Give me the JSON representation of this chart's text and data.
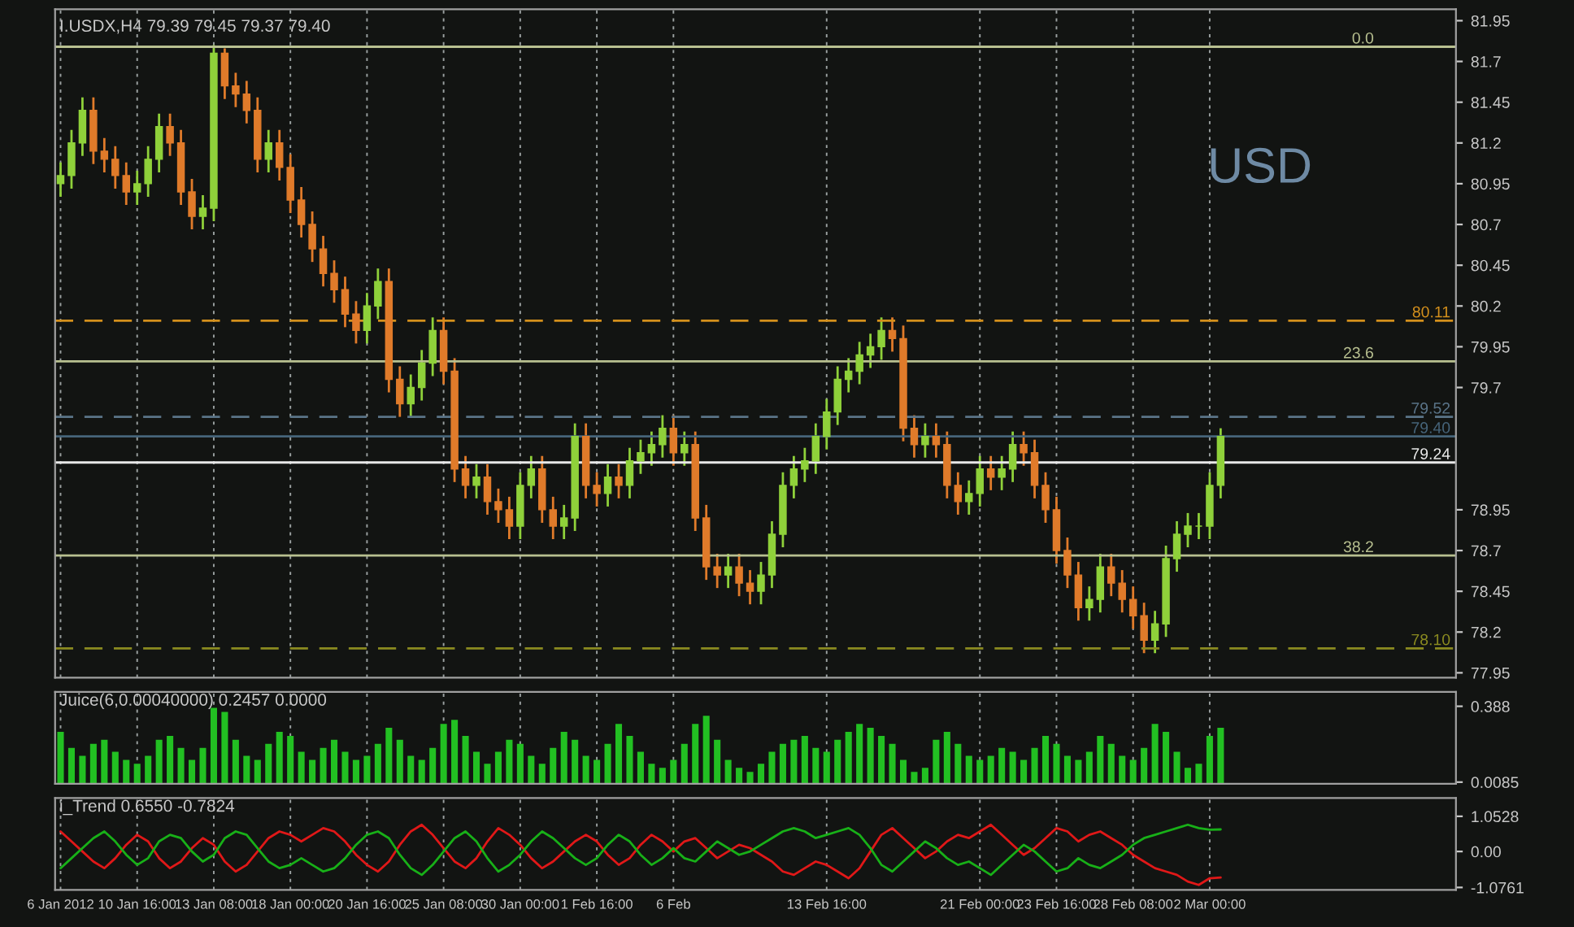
{
  "chart_data": [
    {
      "type": "candlestick",
      "title": "I.USDX,H4 79.39 79.45 79.37 79.40",
      "colors": [
        "#8fd13a",
        "#8fd13a",
        "#8fd13a",
        "#e07b2a",
        "#e07b2a",
        "#e07b2a",
        "#e07b2a",
        "#8fd13a",
        "#8fd13a",
        "#8fd13a",
        "#e07b2a",
        "#e07b2a",
        "#e07b2a",
        "#8fd13a",
        "#8fd13a",
        "#e07b2a",
        "#e07b2a",
        "#e07b2a",
        "#e07b2a",
        "#8fd13a",
        "#e07b2a",
        "#e07b2a",
        "#e07b2a",
        "#e07b2a",
        "#e07b2a",
        "#e07b2a",
        "#e07b2a",
        "#e07b2a",
        "#8fd13a",
        "#8fd13a",
        "#e07b2a",
        "#e07b2a",
        "#8fd13a",
        "#8fd13a",
        "#8fd13a",
        "#e07b2a",
        "#e07b2a",
        "#e07b2a",
        "#8fd13a",
        "#e07b2a",
        "#e07b2a",
        "#e07b2a",
        "#8fd13a",
        "#8fd13a",
        "#e07b2a",
        "#e07b2a",
        "#8fd13a",
        "#8fd13a",
        "#e07b2a",
        "#e07b2a",
        "#8fd13a",
        "#e07b2a",
        "#8fd13a",
        "#8fd13a",
        "#8fd13a",
        "#8fd13a",
        "#e07b2a",
        "#8fd13a",
        "#e07b2a",
        "#e07b2a",
        "#e07b2a",
        "#8fd13a",
        "#e07b2a",
        "#e07b2a",
        "#8fd13a",
        "#8fd13a",
        "#8fd13a",
        "#8fd13a",
        "#8fd13a",
        "#8fd13a",
        "#8fd13a",
        "#8fd13a",
        "#8fd13a",
        "#8fd13a",
        "#8fd13a",
        "#8fd13a",
        "#e07b2a",
        "#e07b2a",
        "#e07b2a",
        "#8fd13a",
        "#e07b2a",
        "#e07b2a",
        "#e07b2a",
        "#8fd13a",
        "#8fd13a",
        "#e07b2a",
        "#8fd13a",
        "#8fd13a",
        "#e07b2a",
        "#e07b2a",
        "#e07b2a",
        "#e07b2a",
        "#e07b2a",
        "#e07b2a",
        "#8fd13a",
        "#8fd13a",
        "#e07b2a",
        "#e07b2a",
        "#e07b2a",
        "#e07b2a",
        "#8fd13a",
        "#8fd13a",
        "#8fd13a",
        "#8fd13a",
        "#8fd13a",
        "#8fd13a",
        "#8fd13a",
        null,
        null,
        null,
        null,
        null,
        null,
        null,
        null,
        null,
        null,
        null,
        null,
        null,
        null,
        null,
        null,
        null,
        null,
        null,
        null,
        null
      ],
      "categories": [
        null,
        null,
        null,
        null,
        null,
        null,
        null,
        null,
        null,
        null,
        null,
        null,
        null,
        null,
        null,
        null,
        null,
        null,
        null,
        null,
        null,
        null,
        null,
        null,
        null,
        null,
        null,
        null,
        null,
        null,
        null,
        null,
        null,
        null,
        null,
        null,
        null,
        null,
        null,
        null,
        null,
        null,
        null,
        null,
        null,
        null,
        null,
        null,
        null,
        null,
        null,
        null,
        null,
        null,
        null,
        null,
        null,
        null,
        null,
        null,
        null,
        null,
        null,
        null,
        null,
        null,
        null,
        null,
        null,
        null,
        null,
        null,
        null,
        null,
        null,
        null,
        null,
        null,
        null,
        null,
        null,
        null,
        null,
        null,
        null,
        null,
        null,
        null,
        null,
        null,
        null,
        null,
        null,
        null,
        null,
        null,
        null,
        null,
        null,
        null,
        null,
        null,
        null,
        null,
        null,
        null,
        null,
        null,
        null,
        null,
        null,
        null,
        null,
        null,
        null,
        null,
        null,
        null,
        null,
        null,
        null,
        null,
        null,
        null,
        null,
        null,
        null,
        null
      ],
      "ohlc": [
        [
          80.95,
          81.08,
          80.87,
          81.0
        ],
        [
          81.0,
          81.28,
          80.92,
          81.2
        ],
        [
          81.2,
          81.48,
          81.12,
          81.4
        ],
        [
          81.4,
          81.48,
          81.07,
          81.15
        ],
        [
          81.15,
          81.23,
          81.02,
          81.1
        ],
        [
          81.1,
          81.18,
          80.92,
          81.0
        ],
        [
          81.0,
          81.08,
          80.82,
          80.9
        ],
        [
          80.9,
          81.03,
          80.82,
          80.95
        ],
        [
          80.95,
          81.18,
          80.87,
          81.1
        ],
        [
          81.1,
          81.38,
          81.02,
          81.3
        ],
        [
          81.3,
          81.38,
          81.12,
          81.2
        ],
        [
          81.2,
          81.28,
          80.82,
          80.9
        ],
        [
          80.9,
          80.98,
          80.67,
          80.75
        ],
        [
          80.75,
          80.88,
          80.67,
          80.8
        ],
        [
          80.8,
          81.8,
          80.72,
          81.75
        ],
        [
          81.75,
          81.78,
          81.47,
          81.55
        ],
        [
          81.55,
          81.63,
          81.42,
          81.5
        ],
        [
          81.5,
          81.58,
          81.32,
          81.4
        ],
        [
          81.4,
          81.48,
          81.02,
          81.1
        ],
        [
          81.1,
          81.28,
          81.02,
          81.2
        ],
        [
          81.2,
          81.28,
          80.97,
          81.05
        ],
        [
          81.05,
          81.13,
          80.77,
          80.85
        ],
        [
          80.85,
          80.93,
          80.62,
          80.7
        ],
        [
          80.7,
          80.78,
          80.47,
          80.55
        ],
        [
          80.55,
          80.63,
          80.32,
          80.4
        ],
        [
          80.4,
          80.48,
          80.22,
          80.3
        ],
        [
          80.3,
          80.38,
          80.07,
          80.15
        ],
        [
          80.15,
          80.23,
          79.97,
          80.05
        ],
        [
          80.05,
          80.28,
          79.97,
          80.2
        ],
        [
          80.2,
          80.43,
          80.12,
          80.35
        ],
        [
          80.35,
          80.43,
          79.67,
          79.75
        ],
        [
          79.75,
          79.83,
          79.52,
          79.6
        ],
        [
          79.6,
          79.78,
          79.52,
          79.7
        ],
        [
          79.7,
          79.93,
          79.62,
          79.85
        ],
        [
          79.85,
          80.13,
          79.77,
          80.05
        ],
        [
          80.05,
          80.13,
          79.72,
          79.8
        ],
        [
          79.8,
          79.88,
          79.12,
          79.2
        ],
        [
          79.2,
          79.28,
          79.02,
          79.1
        ],
        [
          79.1,
          79.23,
          79.02,
          79.15
        ],
        [
          79.15,
          79.23,
          78.92,
          79.0
        ],
        [
          79.0,
          79.08,
          78.87,
          78.95
        ],
        [
          78.95,
          79.03,
          78.77,
          78.85
        ],
        [
          78.85,
          79.18,
          78.77,
          79.1
        ],
        [
          79.1,
          79.28,
          79.02,
          79.2
        ],
        [
          79.2,
          79.28,
          78.87,
          78.95
        ],
        [
          78.95,
          79.03,
          78.77,
          78.85
        ],
        [
          78.85,
          78.98,
          78.77,
          78.9
        ],
        [
          78.9,
          79.48,
          78.82,
          79.4
        ],
        [
          79.4,
          79.48,
          79.02,
          79.1
        ],
        [
          79.1,
          79.18,
          78.97,
          79.05
        ],
        [
          79.05,
          79.23,
          78.97,
          79.15
        ],
        [
          79.15,
          79.23,
          79.02,
          79.1
        ],
        [
          79.1,
          79.33,
          79.02,
          79.25
        ],
        [
          79.25,
          79.38,
          79.17,
          79.3
        ],
        [
          79.3,
          79.43,
          79.22,
          79.35
        ],
        [
          79.35,
          79.53,
          79.27,
          79.45
        ],
        [
          79.45,
          79.53,
          79.22,
          79.3
        ],
        [
          79.3,
          79.43,
          79.22,
          79.35
        ],
        [
          79.35,
          79.43,
          78.82,
          78.9
        ],
        [
          78.9,
          78.98,
          78.52,
          78.6
        ],
        [
          78.6,
          78.68,
          78.47,
          78.55
        ],
        [
          78.55,
          78.68,
          78.47,
          78.6
        ],
        [
          78.6,
          78.68,
          78.42,
          78.5
        ],
        [
          78.5,
          78.58,
          78.37,
          78.45
        ],
        [
          78.45,
          78.63,
          78.37,
          78.55
        ],
        [
          78.55,
          78.88,
          78.47,
          78.8
        ],
        [
          78.8,
          79.18,
          78.72,
          79.1
        ],
        [
          79.1,
          79.28,
          79.02,
          79.2
        ],
        [
          79.2,
          79.33,
          79.12,
          79.25
        ],
        [
          79.25,
          79.48,
          79.17,
          79.4
        ],
        [
          79.4,
          79.63,
          79.32,
          79.55
        ],
        [
          79.55,
          79.83,
          79.47,
          79.75
        ],
        [
          79.75,
          79.88,
          79.67,
          79.8
        ],
        [
          79.8,
          79.98,
          79.72,
          79.9
        ],
        [
          79.9,
          80.03,
          79.82,
          79.95
        ],
        [
          79.95,
          80.13,
          79.87,
          80.05
        ],
        [
          80.05,
          80.13,
          79.92,
          80.0
        ],
        [
          80.0,
          80.08,
          79.37,
          79.45
        ],
        [
          79.45,
          79.53,
          79.27,
          79.35
        ],
        [
          79.35,
          79.48,
          79.27,
          79.4
        ],
        [
          79.4,
          79.48,
          79.27,
          79.35
        ],
        [
          79.35,
          79.43,
          79.02,
          79.1
        ],
        [
          79.1,
          79.18,
          78.92,
          79.0
        ],
        [
          79.0,
          79.13,
          78.92,
          79.05
        ],
        [
          79.05,
          79.28,
          78.97,
          79.2
        ],
        [
          79.2,
          79.28,
          79.07,
          79.15
        ],
        [
          79.15,
          79.28,
          79.07,
          79.2
        ],
        [
          79.2,
          79.43,
          79.12,
          79.35
        ],
        [
          79.35,
          79.43,
          79.22,
          79.3
        ],
        [
          79.3,
          79.38,
          79.02,
          79.1
        ],
        [
          79.1,
          79.18,
          78.87,
          78.95
        ],
        [
          78.95,
          79.03,
          78.62,
          78.7
        ],
        [
          78.7,
          78.78,
          78.47,
          78.55
        ],
        [
          78.55,
          78.63,
          78.27,
          78.35
        ],
        [
          78.35,
          78.48,
          78.27,
          78.4
        ],
        [
          78.4,
          78.68,
          78.32,
          78.6
        ],
        [
          78.6,
          78.68,
          78.42,
          78.5
        ],
        [
          78.5,
          78.58,
          78.32,
          78.4
        ],
        [
          78.4,
          78.48,
          78.22,
          78.3
        ],
        [
          78.3,
          78.38,
          78.07,
          78.15
        ],
        [
          78.15,
          78.33,
          78.07,
          78.25
        ],
        [
          78.25,
          78.73,
          78.17,
          78.65
        ],
        [
          78.65,
          78.88,
          78.57,
          78.8
        ],
        [
          78.8,
          78.93,
          78.72,
          78.85
        ],
        [
          78.85,
          78.93,
          78.77,
          78.85
        ],
        [
          78.85,
          79.18,
          78.77,
          79.1
        ],
        [
          79.1,
          79.45,
          79.02,
          79.4
        ],
        null,
        null,
        null,
        null,
        null,
        null,
        null,
        null,
        null,
        null,
        null,
        null,
        null,
        null,
        null,
        null,
        null,
        null,
        null,
        null,
        null
      ],
      "ylim": [
        77.92,
        82.02
      ],
      "yticks": [
        81.95,
        81.7,
        81.45,
        81.2,
        80.95,
        80.7,
        80.45,
        80.2,
        79.95,
        79.7,
        78.95,
        78.7,
        78.45,
        78.2,
        77.95
      ],
      "ref_lines": [
        {
          "axis": "y",
          "value": 81.79,
          "color": "#b8c090",
          "line_style": "solid"
        },
        {
          "axis": "y",
          "value": 80.11,
          "label": "80.11",
          "color": "#d4901c",
          "line_style": "dashed"
        },
        {
          "axis": "y",
          "value": 79.86,
          "color": "#b8c090",
          "line_style": "solid"
        },
        {
          "axis": "y",
          "value": 79.52,
          "label": "79.52",
          "color": "#5a7488",
          "line_style": "dashed"
        },
        {
          "axis": "y",
          "value": 79.4,
          "label": "79.40",
          "color": "#46647a",
          "line_style": "solid"
        },
        {
          "axis": "y",
          "value": 79.24,
          "label": "79.24",
          "color": "#e8e8e8",
          "line_style": "solid"
        },
        {
          "axis": "y",
          "value": 78.67,
          "color": "#b8c090",
          "line_style": "solid"
        },
        {
          "axis": "y",
          "value": 78.1,
          "label": "78.10",
          "color": "#8a8a20",
          "line_style": "dashed"
        }
      ],
      "annotations": [
        "USD",
        {
          "text": "0.0",
          "y": 81.79
        },
        {
          "text": "23.6",
          "y": 79.86
        },
        {
          "text": "38.2",
          "y": 78.67
        }
      ],
      "grid": "x",
      "tick_labels": "y"
    },
    {
      "type": "bar",
      "title": "Juice(6,0.00040000) 0.2457 0.0000",
      "color": "#22c022",
      "categories": [
        null,
        null,
        null,
        null,
        null,
        null,
        null,
        null,
        null,
        null,
        null,
        null,
        null,
        null,
        null,
        null,
        null,
        null,
        null,
        null,
        null,
        null,
        null,
        null,
        null,
        null,
        null,
        null,
        null,
        null,
        null,
        null,
        null,
        null,
        null,
        null,
        null,
        null,
        null,
        null,
        null,
        null,
        null,
        null,
        null,
        null,
        null,
        null,
        null,
        null,
        null,
        null,
        null,
        null,
        null,
        null,
        null,
        null,
        null,
        null,
        null,
        null,
        null,
        null,
        null,
        null,
        null,
        null,
        null,
        null,
        null,
        null,
        null,
        null,
        null,
        null,
        null,
        null,
        null,
        null,
        null,
        null,
        null,
        null,
        null,
        null,
        null,
        null,
        null,
        null,
        null,
        null,
        null,
        null,
        null,
        null,
        null,
        null,
        null,
        null,
        null,
        null,
        null,
        null,
        null,
        null,
        null,
        null,
        null,
        null,
        null,
        null,
        null,
        null,
        null,
        null,
        null,
        null,
        null,
        null,
        null,
        null,
        null,
        null,
        null,
        null,
        null,
        null
      ],
      "values": [
        0.26,
        0.18,
        0.14,
        0.2,
        0.22,
        0.16,
        0.12,
        0.1,
        0.14,
        0.22,
        0.24,
        0.18,
        0.12,
        0.18,
        0.38,
        0.36,
        0.22,
        0.14,
        0.12,
        0.2,
        0.26,
        0.24,
        0.16,
        0.12,
        0.18,
        0.22,
        0.16,
        0.12,
        0.14,
        0.2,
        0.28,
        0.22,
        0.14,
        0.12,
        0.18,
        0.3,
        0.32,
        0.24,
        0.16,
        0.1,
        0.16,
        0.22,
        0.2,
        0.14,
        0.1,
        0.18,
        0.26,
        0.22,
        0.14,
        0.12,
        0.2,
        0.3,
        0.24,
        0.16,
        0.1,
        0.08,
        0.12,
        0.2,
        0.3,
        0.34,
        0.22,
        0.12,
        0.08,
        0.06,
        0.1,
        0.16,
        0.2,
        0.22,
        0.24,
        0.18,
        0.16,
        0.22,
        0.26,
        0.3,
        0.28,
        0.24,
        0.2,
        0.12,
        0.06,
        0.08,
        0.22,
        0.26,
        0.2,
        0.14,
        0.12,
        0.14,
        0.18,
        0.16,
        0.12,
        0.18,
        0.24,
        0.2,
        0.14,
        0.12,
        0.16,
        0.24,
        0.2,
        0.14,
        0.12,
        0.18,
        0.3,
        0.26,
        0.16,
        0.08,
        0.1,
        0.24,
        0.28,
        null,
        null,
        null,
        null,
        null,
        null,
        null,
        null,
        null,
        null,
        null,
        null,
        null,
        null,
        null,
        null,
        null,
        null,
        null,
        null,
        null
      ],
      "ylim": [
        0,
        0.46
      ],
      "yticks": [
        0.388,
        0.0085
      ],
      "grid": "x",
      "tick_labels": "y"
    },
    {
      "type": "line",
      "title": "i_Trend 0.6550 -0.7824",
      "categories": [
        "6 Jan 2012",
        null,
        null,
        null,
        null,
        null,
        null,
        "10 Jan 16:00",
        null,
        null,
        null,
        null,
        null,
        null,
        "13 Jan 08:00",
        null,
        null,
        null,
        null,
        null,
        null,
        "18 Jan 00:00",
        null,
        null,
        null,
        null,
        null,
        null,
        "20 Jan 16:00",
        null,
        null,
        null,
        null,
        null,
        null,
        "25 Jan 08:00",
        null,
        null,
        null,
        null,
        null,
        null,
        "30 Jan 00:00",
        null,
        null,
        null,
        null,
        null,
        null,
        "1 Feb 16:00",
        null,
        null,
        null,
        null,
        null,
        null,
        "6 Feb",
        null,
        null,
        null,
        null,
        null,
        null,
        null,
        null,
        null,
        null,
        null,
        null,
        null,
        "13 Feb 16:00",
        null,
        null,
        null,
        null,
        null,
        null,
        null,
        null,
        null,
        null,
        null,
        null,
        null,
        "21 Feb 00:00",
        null,
        null,
        null,
        null,
        null,
        null,
        "23 Feb 16:00",
        null,
        null,
        null,
        null,
        null,
        null,
        "28 Feb 08:00",
        null,
        null,
        null,
        null,
        null,
        null,
        "2 Mar 00:00",
        null,
        null,
        null,
        null,
        null,
        null,
        null,
        null,
        null,
        null,
        null,
        null,
        null,
        null,
        null,
        null,
        null,
        null,
        null,
        null,
        null,
        null
      ],
      "series": [
        {
          "color": "#e01818",
          "values": [
            0.6,
            0.3,
            0.0,
            -0.3,
            -0.5,
            -0.2,
            0.2,
            0.5,
            0.3,
            -0.2,
            -0.5,
            -0.3,
            0.1,
            0.4,
            0.2,
            -0.3,
            -0.6,
            -0.4,
            0.0,
            0.4,
            0.6,
            0.5,
            0.3,
            0.5,
            0.7,
            0.6,
            0.3,
            -0.1,
            -0.4,
            -0.6,
            -0.3,
            0.2,
            0.6,
            0.8,
            0.5,
            0.1,
            -0.3,
            -0.5,
            -0.2,
            0.3,
            0.7,
            0.5,
            0.2,
            -0.2,
            -0.5,
            -0.3,
            0.0,
            0.3,
            0.5,
            0.3,
            -0.1,
            -0.4,
            -0.2,
            0.2,
            0.5,
            0.3,
            0.0,
            0.3,
            0.4,
            0.1,
            -0.2,
            0.0,
            0.2,
            0.1,
            -0.1,
            -0.3,
            -0.6,
            -0.7,
            -0.5,
            -0.3,
            -0.4,
            -0.6,
            -0.8,
            -0.5,
            0.0,
            0.5,
            0.7,
            0.4,
            0.1,
            -0.2,
            0.0,
            0.3,
            0.5,
            0.4,
            0.6,
            0.8,
            0.5,
            0.2,
            -0.1,
            0.1,
            0.4,
            0.7,
            0.6,
            0.3,
            0.5,
            0.6,
            0.4,
            0.2,
            -0.1,
            -0.3,
            -0.5,
            -0.6,
            -0.7,
            -0.9,
            -1.0,
            -0.8,
            -0.78,
            null,
            null,
            null,
            null,
            null,
            null,
            null,
            null,
            null,
            null,
            null,
            null,
            null,
            null,
            null,
            null,
            null,
            null,
            null,
            null,
            null
          ]
        },
        {
          "color": "#18b018",
          "values": [
            -0.5,
            -0.2,
            0.1,
            0.4,
            0.6,
            0.3,
            -0.1,
            -0.4,
            -0.2,
            0.3,
            0.5,
            0.4,
            0.0,
            -0.3,
            -0.1,
            0.4,
            0.6,
            0.5,
            0.1,
            -0.3,
            -0.5,
            -0.4,
            -0.2,
            -0.4,
            -0.6,
            -0.5,
            -0.2,
            0.2,
            0.5,
            0.6,
            0.4,
            -0.1,
            -0.5,
            -0.7,
            -0.4,
            0.0,
            0.4,
            0.6,
            0.3,
            -0.2,
            -0.6,
            -0.4,
            -0.1,
            0.3,
            0.6,
            0.4,
            0.1,
            -0.2,
            -0.4,
            -0.2,
            0.2,
            0.5,
            0.3,
            -0.1,
            -0.4,
            -0.2,
            0.1,
            -0.2,
            -0.3,
            0.0,
            0.3,
            0.1,
            -0.1,
            0.0,
            0.2,
            0.4,
            0.6,
            0.7,
            0.6,
            0.4,
            0.5,
            0.6,
            0.7,
            0.5,
            0.1,
            -0.4,
            -0.6,
            -0.3,
            0.0,
            0.3,
            0.1,
            -0.2,
            -0.4,
            -0.3,
            -0.5,
            -0.7,
            -0.4,
            -0.1,
            0.2,
            0.0,
            -0.3,
            -0.6,
            -0.5,
            -0.2,
            -0.4,
            -0.5,
            -0.3,
            -0.1,
            0.2,
            0.4,
            0.5,
            0.6,
            0.7,
            0.8,
            0.7,
            0.65,
            0.66,
            null,
            null,
            null,
            null,
            null,
            null,
            null,
            null,
            null,
            null,
            null,
            null,
            null,
            null,
            null,
            null,
            null,
            null,
            null,
            null,
            null
          ]
        }
      ],
      "ylim": [
        -1.15,
        1.6
      ],
      "yticks": [
        1.0528,
        {
          "value": 0,
          "label": "0.00"
        },
        -1.0761
      ],
      "grid": "x",
      "line_style": "solid",
      "marker": "none"
    }
  ]
}
